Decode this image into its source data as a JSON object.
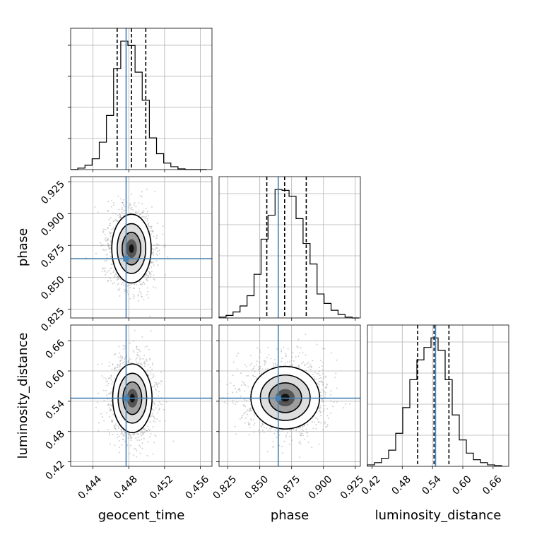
{
  "chart_data": {
    "type": "corner",
    "parameters": [
      "geocent_time",
      "phase",
      "luminosity_distance"
    ],
    "axis_labels": {
      "geocent_time": "geocent_time",
      "phase": "phase",
      "luminosity_distance": "luminosity_distance"
    },
    "ticks": {
      "geocent_time": [
        "0.444",
        "0.448",
        "0.452",
        "0.456"
      ],
      "phase": [
        "0.825",
        "0.850",
        "0.875",
        "0.900",
        "0.925"
      ],
      "luminosity_distance": [
        "0.42",
        "0.48",
        "0.54",
        "0.60",
        "0.66"
      ]
    },
    "ranges": {
      "geocent_time": [
        0.4415,
        0.4573
      ],
      "phase": [
        0.818,
        0.929
      ],
      "luminosity_distance": [
        0.411,
        0.691
      ]
    },
    "truths": {
      "geocent_time": 0.4477,
      "phase": 0.8645,
      "luminosity_distance": 0.546
    },
    "quantiles": {
      "geocent_time": [
        0.4467,
        0.4483,
        0.4499
      ],
      "phase": [
        0.8555,
        0.8695,
        0.8865
      ],
      "luminosity_distance": [
        0.5105,
        0.543,
        0.5725
      ]
    },
    "histograms": {
      "geocent_time": {
        "bin_edges": [
          0.4415,
          0.4423,
          0.4431,
          0.4439,
          0.4447,
          0.4455,
          0.4463,
          0.4471,
          0.4479,
          0.4487,
          0.4495,
          0.4503,
          0.4511,
          0.4519,
          0.4527,
          0.4535,
          0.4543,
          0.4551,
          0.4559,
          0.4567
        ],
        "counts": [
          0,
          2,
          6,
          15,
          38,
          75,
          140,
          178,
          172,
          135,
          96,
          44,
          22,
          9,
          4,
          1,
          0,
          0,
          0
        ]
      },
      "phase": {
        "bin_edges": [
          0.818,
          0.8235,
          0.829,
          0.8345,
          0.84,
          0.8455,
          0.851,
          0.8565,
          0.862,
          0.8675,
          0.873,
          0.8785,
          0.884,
          0.8895,
          0.895,
          0.9005,
          0.906,
          0.9115,
          0.917,
          0.9225,
          0.928
        ],
        "counts": [
          1,
          3,
          7,
          14,
          26,
          51,
          92,
          120,
          150,
          149,
          142,
          116,
          87,
          63,
          28,
          17,
          9,
          4,
          1,
          0
        ]
      },
      "luminosity_distance": {
        "bin_edges": [
          0.411,
          0.425,
          0.439,
          0.453,
          0.467,
          0.481,
          0.495,
          0.509,
          0.523,
          0.537,
          0.551,
          0.565,
          0.579,
          0.593,
          0.607,
          0.621,
          0.635,
          0.649,
          0.663,
          0.677
        ],
        "counts": [
          2,
          5,
          11,
          22,
          45,
          80,
          118,
          145,
          162,
          175,
          158,
          118,
          70,
          36,
          18,
          9,
          5,
          2,
          1
        ]
      }
    },
    "joint_2d": [
      {
        "x": "geocent_time",
        "y": "phase",
        "center": [
          0.4483,
          0.8725
        ],
        "sigma": [
          0.0011,
          0.0135
        ]
      },
      {
        "x": "geocent_time",
        "y": "luminosity_distance",
        "center": [
          0.4484,
          0.546
        ],
        "sigma": [
          0.0011,
          0.034
        ]
      },
      {
        "x": "phase",
        "y": "luminosity_distance",
        "center": [
          0.87,
          0.547
        ],
        "sigma": [
          0.0135,
          0.031
        ]
      }
    ],
    "colors": {
      "truth": "#4682b4",
      "hist": "#000000",
      "scatter": "#9a9a9a"
    }
  }
}
